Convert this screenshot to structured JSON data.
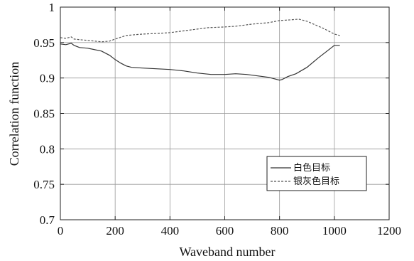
{
  "chart_data": {
    "type": "line",
    "title": "",
    "xlabel": "Waveband number",
    "ylabel": "Correlation function",
    "xlim": [
      0,
      1200
    ],
    "ylim": [
      0.7,
      1
    ],
    "xticks": [
      0,
      200,
      400,
      600,
      800,
      1000,
      1200
    ],
    "yticks": [
      0.7,
      0.75,
      0.8,
      0.85,
      0.9,
      0.95,
      1
    ],
    "xtick_labels": [
      "0",
      "200",
      "400",
      "600",
      "800",
      "1000",
      "1200"
    ],
    "ytick_labels": [
      "0.7",
      "0.75",
      "0.8",
      "0.85",
      "0.9",
      "0.95",
      "1"
    ],
    "grid": true,
    "legend_position": "lower-right",
    "series": [
      {
        "name": "白色目标",
        "style": "solid",
        "color": "#333333",
        "x": [
          0,
          20,
          40,
          50,
          70,
          100,
          150,
          180,
          200,
          220,
          240,
          260,
          300,
          350,
          400,
          450,
          500,
          550,
          600,
          640,
          680,
          720,
          760,
          790,
          800,
          810,
          830,
          860,
          900,
          940,
          970,
          990,
          1000,
          1020
        ],
        "y": [
          0.948,
          0.947,
          0.949,
          0.946,
          0.943,
          0.942,
          0.938,
          0.932,
          0.926,
          0.921,
          0.917,
          0.915,
          0.914,
          0.913,
          0.912,
          0.91,
          0.907,
          0.905,
          0.905,
          0.906,
          0.905,
          0.903,
          0.901,
          0.898,
          0.897,
          0.898,
          0.902,
          0.906,
          0.915,
          0.928,
          0.937,
          0.943,
          0.946,
          0.946
        ]
      },
      {
        "name": "银灰色目标",
        "style": "dashed",
        "color": "#555555",
        "x": [
          0,
          20,
          40,
          50,
          70,
          100,
          150,
          180,
          200,
          240,
          300,
          360,
          400,
          460,
          500,
          540,
          600,
          640,
          700,
          760,
          800,
          840,
          870,
          900,
          930,
          960,
          990,
          1000,
          1020
        ],
        "y": [
          0.957,
          0.956,
          0.958,
          0.955,
          0.954,
          0.953,
          0.951,
          0.952,
          0.955,
          0.96,
          0.962,
          0.963,
          0.964,
          0.967,
          0.969,
          0.971,
          0.972,
          0.973,
          0.976,
          0.978,
          0.981,
          0.982,
          0.983,
          0.98,
          0.975,
          0.97,
          0.964,
          0.962,
          0.96
        ]
      }
    ]
  }
}
